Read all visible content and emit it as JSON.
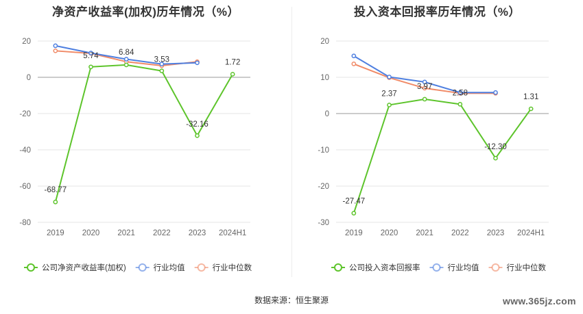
{
  "source_text": "数据来源：恒生聚源",
  "watermark": "www.365jz.com",
  "chart_data": [
    {
      "type": "line",
      "title": "净资产收益率(加权)历年情况（%）",
      "categories": [
        "2019",
        "2020",
        "2021",
        "2022",
        "2023",
        "2024H1"
      ],
      "ylim": [
        -80,
        20
      ],
      "yticks": [
        20,
        0,
        -20,
        -40,
        -60,
        -80
      ],
      "grid": true,
      "legend_position": "bottom",
      "series": [
        {
          "name": "公司净资产收益率(加权)",
          "color": "#5dc42b",
          "values": [
            -68.77,
            5.74,
            6.84,
            3.53,
            -32.16,
            1.72
          ],
          "labels": [
            "-68.77",
            "5.74",
            "6.84",
            "3.53",
            "-32.16",
            "1.72"
          ]
        },
        {
          "name": "行业均值",
          "color": "#4e7fe0",
          "values": [
            17.4,
            13.4,
            10.0,
            7.3,
            8.0,
            null
          ]
        },
        {
          "name": "行业中位数",
          "color": "#f08a67",
          "values": [
            14.6,
            13.2,
            8.6,
            6.4,
            8.6,
            null
          ]
        }
      ]
    },
    {
      "type": "line",
      "title": "投入资本回报率历年情况（%）",
      "categories": [
        "2019",
        "2020",
        "2021",
        "2022",
        "2023",
        "2024H1"
      ],
      "ylim": [
        -30,
        20
      ],
      "yticks": [
        20,
        10,
        0,
        -10,
        -20,
        -30
      ],
      "grid": true,
      "legend_position": "bottom",
      "series": [
        {
          "name": "公司投入资本回报率",
          "color": "#5dc42b",
          "values": [
            -27.47,
            2.37,
            3.97,
            2.58,
            -12.3,
            1.31
          ],
          "labels": [
            "-27.47",
            "2.37",
            "3.97",
            "2.58",
            "-12.30",
            "1.31"
          ]
        },
        {
          "name": "行业均值",
          "color": "#4e7fe0",
          "values": [
            15.9,
            10.1,
            8.7,
            5.8,
            5.8,
            null
          ]
        },
        {
          "name": "行业中位数",
          "color": "#f08a67",
          "values": [
            13.7,
            9.9,
            7.0,
            5.6,
            5.6,
            null
          ]
        }
      ]
    }
  ]
}
